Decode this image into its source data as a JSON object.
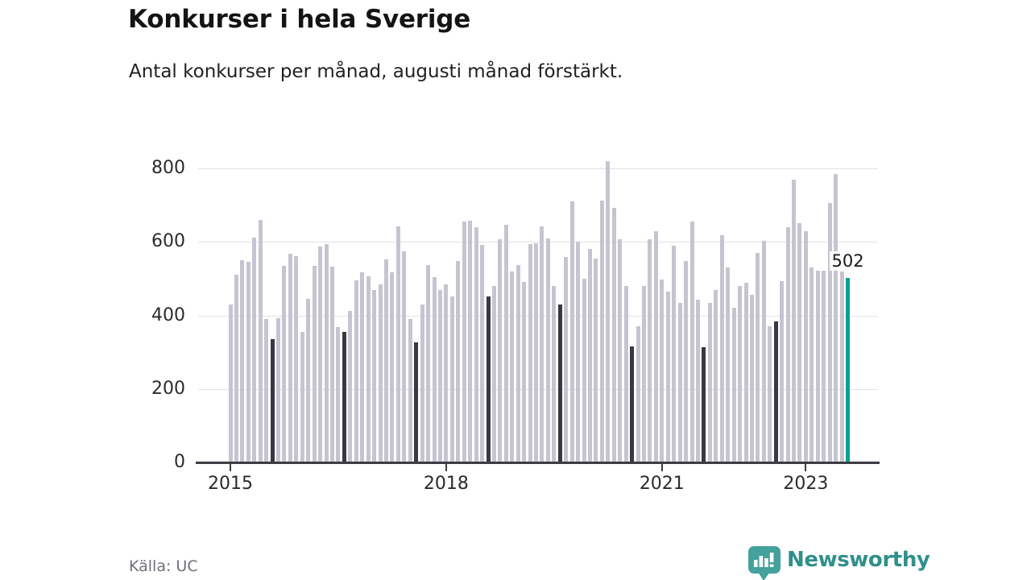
{
  "header": {
    "title": "Konkurser i hela Sverige",
    "subtitle": "Antal konkurser per månad, augusti månad förstärkt."
  },
  "chart_data": {
    "type": "bar",
    "title": "Konkurser i hela Sverige",
    "subtitle": "Antal konkurser per månad, augusti månad förstärkt.",
    "x_start": "2015-01",
    "x_end": "2023-08",
    "x_note": "one bar per month, Jan 2015 through Aug 2023",
    "values": [
      430,
      510,
      550,
      545,
      612,
      660,
      390,
      335,
      392,
      535,
      568,
      562,
      354,
      445,
      535,
      588,
      595,
      533,
      368,
      355,
      412,
      496,
      518,
      506,
      470,
      485,
      552,
      518,
      642,
      575,
      390,
      327,
      430,
      538,
      505,
      469,
      484,
      452,
      547,
      655,
      658,
      640,
      591,
      452,
      481,
      607,
      647,
      520,
      538,
      490,
      595,
      596,
      642,
      610,
      480,
      430,
      560,
      710,
      600,
      500,
      580,
      555,
      712,
      820,
      692,
      608,
      480,
      316,
      370,
      480,
      608,
      628,
      498,
      465,
      590,
      435,
      547,
      655,
      443,
      314,
      435,
      468,
      618,
      530,
      420,
      481,
      489,
      456,
      569,
      602,
      371,
      384,
      494,
      640,
      770,
      652,
      628,
      530,
      522,
      522,
      706,
      785,
      520,
      502
    ],
    "year_ticks": [
      {
        "label": "2015",
        "month_index": 0
      },
      {
        "label": "2018",
        "month_index": 36
      },
      {
        "label": "2021",
        "month_index": 72
      },
      {
        "label": "2023",
        "month_index": 96
      }
    ],
    "yticks": [
      0,
      200,
      400,
      600,
      800
    ],
    "ylim": [
      0,
      800
    ],
    "grid": true,
    "legend": false,
    "highlight_rule": "every August bar is dark; latest month (Aug 2023) is teal accent",
    "annotation": {
      "text": "502",
      "month_index": 103
    },
    "colors": {
      "bar": "#c7c4d1",
      "august": "#3a3845",
      "accent": "#00a294"
    }
  },
  "footer": {
    "source": "Källa: UC",
    "brand": "Newsworthy",
    "brand_color": "#30908b",
    "icon": "newsworthy-speech-bubble-chart-icon"
  }
}
